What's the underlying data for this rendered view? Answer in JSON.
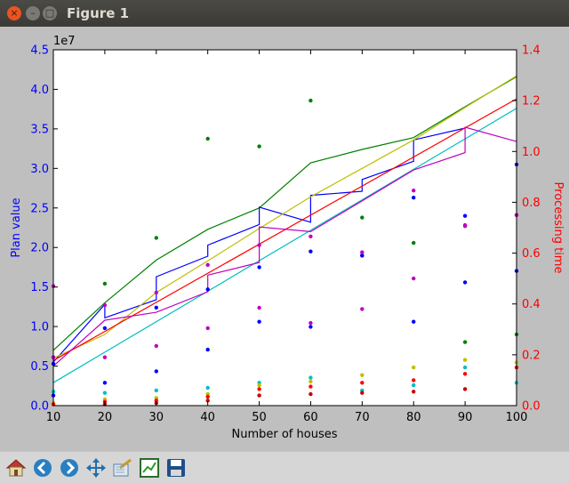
{
  "window": {
    "title": "Figure 1",
    "close_glyph": "×",
    "min_glyph": "–",
    "max_glyph": "□"
  },
  "toolbar": {
    "buttons": [
      {
        "name": "home-button",
        "icon": "home-icon"
      },
      {
        "name": "back-button",
        "icon": "arrow-left-icon"
      },
      {
        "name": "forward-button",
        "icon": "arrow-right-icon"
      },
      {
        "name": "pan-button",
        "icon": "move-arrows-icon"
      },
      {
        "name": "zoom-button",
        "icon": "zoom-rect-icon"
      },
      {
        "name": "subplots-button",
        "icon": "subplots-icon"
      },
      {
        "name": "save-button",
        "icon": "floppy-disk-icon"
      }
    ]
  },
  "chart_data": {
    "type": "line",
    "xlabel": "Number of houses",
    "ylabel": "Plan value",
    "y2label": "Processing time",
    "offset_text": "1e7",
    "xlim": [
      10,
      100
    ],
    "ylim": [
      0,
      45000000
    ],
    "y2lim": [
      0,
      1.4
    ],
    "x_ticks": [
      "10",
      "20",
      "30",
      "40",
      "50",
      "60",
      "70",
      "80",
      "90",
      "100"
    ],
    "y_ticks": [
      "0.0",
      "0.5",
      "1.0",
      "1.5",
      "2.0",
      "2.5",
      "3.0",
      "3.5",
      "4.0",
      "4.5"
    ],
    "y2_ticks": [
      "0.0",
      "0.2",
      "0.4",
      "0.6",
      "0.8",
      "1.0",
      "1.2",
      "1.4"
    ],
    "colors": {
      "left_axis": "#0000ff",
      "right_axis": "#ff0000"
    },
    "lines": [
      {
        "color": "#008000",
        "axis": "left",
        "x": [
          10,
          20,
          30,
          40,
          50,
          60,
          70,
          80,
          90,
          100
        ],
        "y": [
          7000000,
          13000000,
          18400000,
          22300000,
          25000000,
          30700000,
          32400000,
          33900000,
          37800000,
          41600000
        ]
      },
      {
        "color": "#0000ff",
        "axis": "left",
        "x": [
          10,
          20,
          20,
          30,
          30,
          40,
          40,
          50,
          50,
          60,
          60,
          70,
          70,
          80,
          80,
          90
        ],
        "y": [
          5500000,
          12800000,
          11100000,
          13400000,
          16300000,
          18900000,
          20300000,
          22900000,
          25100000,
          23200000,
          26600000,
          27100000,
          28600000,
          30900000,
          33600000,
          35100000
        ]
      },
      {
        "color": "#bfbf00",
        "axis": "left",
        "x": [
          10,
          20,
          30,
          40,
          50,
          60,
          70,
          80,
          90,
          100
        ],
        "y": [
          6000000,
          9000000,
          14300000,
          18300000,
          22400000,
          26400000,
          30000000,
          33600000,
          37700000,
          41700000
        ]
      },
      {
        "color": "#ff0000",
        "axis": "left",
        "x": [
          10,
          100
        ],
        "y": [
          5700000,
          38800000
        ]
      },
      {
        "color": "#00bfbf",
        "axis": "left",
        "x": [
          10,
          100
        ],
        "y": [
          2900000,
          37600000
        ]
      },
      {
        "color": "#bf00bf",
        "axis": "left",
        "x": [
          10,
          20,
          30,
          40,
          40,
          50,
          50,
          60,
          70,
          80,
          90,
          90,
          100
        ],
        "y": [
          5000000,
          10800000,
          11800000,
          14400000,
          16500000,
          18100000,
          22600000,
          22000000,
          25900000,
          29800000,
          32000000,
          35200000,
          33400000
        ]
      }
    ],
    "points": [
      {
        "color": "#008000",
        "axis": "right",
        "x": [
          10,
          20,
          30,
          40,
          50,
          60,
          70,
          80,
          90,
          100
        ],
        "y": [
          0.19,
          0.48,
          0.66,
          1.05,
          1.02,
          1.2,
          0.74,
          0.64,
          0.25,
          0.28
        ]
      },
      {
        "color": "#0000ff",
        "axis": "right",
        "x": [
          10,
          20,
          30,
          40,
          50,
          60,
          70,
          80,
          90,
          100
        ],
        "y": [
          0.04,
          0.09,
          0.135,
          0.22,
          0.33,
          0.31,
          0.59,
          0.33,
          0.485,
          0.53
        ]
      },
      {
        "color": "#0000ff",
        "axis": "left",
        "x": [
          10,
          20,
          30,
          40,
          50,
          60,
          70,
          80,
          90,
          100
        ],
        "y": [
          5300000,
          9800000,
          12400000,
          14700000,
          17500000,
          19500000,
          19000000,
          26300000,
          24000000,
          30500000
        ]
      },
      {
        "color": "#bf00bf",
        "axis": "right",
        "x": [
          10,
          20,
          30,
          40,
          50,
          60,
          70,
          80,
          90,
          100
        ],
        "y": [
          0.47,
          0.19,
          0.235,
          0.305,
          0.385,
          0.325,
          0.38,
          0.5,
          0.71,
          0.75
        ]
      },
      {
        "color": "#bf00bf",
        "axis": "left",
        "x": [
          10,
          20,
          30,
          40,
          50,
          60,
          70,
          80,
          90,
          100
        ],
        "y": [
          6100000,
          12700000,
          14300000,
          17800000,
          20300000,
          21400000,
          19400000,
          27200000,
          22700000,
          24100000
        ]
      },
      {
        "color": "#00bfbf",
        "axis": "right",
        "x": [
          10,
          20,
          30,
          40,
          50,
          60,
          70,
          80,
          90,
          100
        ],
        "y": [
          0.055,
          0.05,
          0.06,
          0.07,
          0.09,
          0.11,
          0.06,
          0.08,
          0.15,
          0.09
        ]
      },
      {
        "color": "#bfbf00",
        "axis": "right",
        "x": [
          10,
          20,
          30,
          40,
          50,
          60,
          70,
          80,
          90,
          100
        ],
        "y": [
          0.01,
          0.025,
          0.03,
          0.045,
          0.08,
          0.095,
          0.12,
          0.15,
          0.18,
          0.17
        ]
      },
      {
        "color": "#ff0000",
        "axis": "right",
        "x": [
          10,
          20,
          30,
          40,
          50,
          60,
          70,
          80,
          90,
          100
        ],
        "y": [
          0.005,
          0.015,
          0.02,
          0.035,
          0.065,
          0.075,
          0.09,
          0.1,
          0.125,
          0.15
        ]
      },
      {
        "color": "#cc0000",
        "axis": "right",
        "x": [
          20,
          30,
          40,
          50,
          60,
          70,
          80,
          90
        ],
        "y": [
          0.005,
          0.01,
          0.02,
          0.04,
          0.045,
          0.05,
          0.055,
          0.065
        ]
      }
    ]
  }
}
